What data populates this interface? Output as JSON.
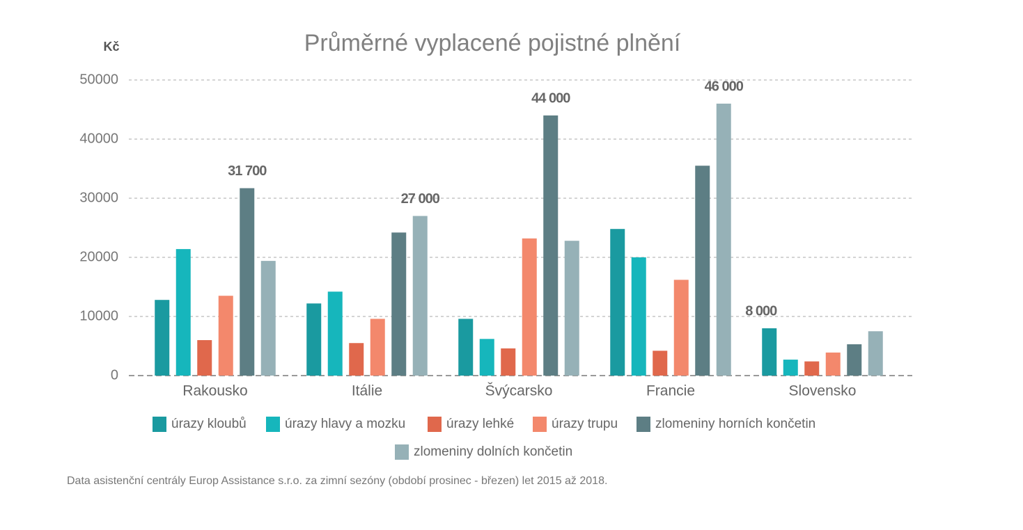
{
  "chart_data": {
    "type": "bar",
    "title": "Průměrné vyplacené pojistné plnění",
    "y_label": "Kč",
    "note": "Data asistenční centrály Europ Assistance s.r.o. za zimní sezóny (období prosinec - březen) let 2015 až 2018.",
    "categories": [
      "Rakousko",
      "Itálie",
      "Švýcarsko",
      "Francie",
      "Slovensko"
    ],
    "series": [
      {
        "name": "úrazy kloubů",
        "color": "#1a9aa0",
        "values": [
          12800,
          12200,
          9600,
          24800,
          8000
        ],
        "value_labels": [
          null,
          null,
          null,
          null,
          "8 000"
        ]
      },
      {
        "name": "úrazy hlavy a mozku",
        "color": "#16b6bc",
        "values": [
          21400,
          14200,
          6200,
          20000,
          2700
        ]
      },
      {
        "name": "úrazy lehké",
        "color": "#e0684c",
        "values": [
          6000,
          5500,
          4600,
          4200,
          2400
        ]
      },
      {
        "name": "úrazy trupu",
        "color": "#f3886c",
        "values": [
          13500,
          9600,
          23200,
          16200,
          3900
        ]
      },
      {
        "name": "zlomeniny horních končetin",
        "color": "#5d7e84",
        "values": [
          31700,
          24200,
          44000,
          35500,
          5300
        ],
        "value_labels": [
          "31 700",
          null,
          "44 000",
          null,
          null
        ]
      },
      {
        "name": "zlomeniny dolních končetin",
        "color": "#96b1b7",
        "values": [
          19400,
          27000,
          22800,
          46000,
          7500
        ],
        "value_labels": [
          null,
          "27 000",
          null,
          "46 000",
          null
        ]
      }
    ],
    "ylim": [
      0,
      50000
    ],
    "yticks": [
      0,
      10000,
      20000,
      30000,
      40000,
      50000
    ],
    "grid": true
  }
}
